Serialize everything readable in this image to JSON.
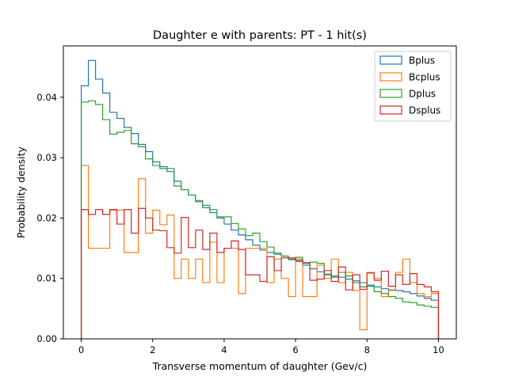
{
  "chart_data": {
    "type": "histogram",
    "title": "Daughter e with parents: PT - 1 hit(s)",
    "xlabel": "Transverse momentum of daughter (Gev/c)",
    "ylabel": "Probability density",
    "xlim": [
      -0.5,
      10.5
    ],
    "ylim": [
      0,
      0.0485
    ],
    "x_ticks": [
      0,
      2,
      4,
      6,
      8,
      10
    ],
    "y_ticks": [
      0.0,
      0.01,
      0.02,
      0.03,
      0.04
    ],
    "y_tick_labels": [
      "0.00",
      "0.01",
      "0.02",
      "0.03",
      "0.04"
    ],
    "bin_start": 0,
    "bin_width": 0.2,
    "legend": "top-right",
    "series": [
      {
        "name": "Bplus",
        "color": "#1f77b4",
        "values": [
          0.0419,
          0.0461,
          0.043,
          0.0407,
          0.0375,
          0.0365,
          0.035,
          0.034,
          0.0322,
          0.031,
          0.0293,
          0.0285,
          0.0277,
          0.0261,
          0.0247,
          0.0238,
          0.0227,
          0.0217,
          0.0209,
          0.02,
          0.019,
          0.018,
          0.0172,
          0.0164,
          0.0155,
          0.0147,
          0.0143,
          0.014,
          0.0137,
          0.0132,
          0.0128,
          0.0122,
          0.0116,
          0.0111,
          0.0107,
          0.0104,
          0.0102,
          0.0099,
          0.0096,
          0.0093,
          0.0089,
          0.0086,
          0.0083,
          0.0081,
          0.008,
          0.0078,
          0.0075,
          0.0071,
          0.0067,
          0.0064
        ]
      },
      {
        "name": "Bcplus",
        "color": "#ff7f0e",
        "values": [
          0.0287,
          0.015,
          0.015,
          0.015,
          0.0213,
          0.0213,
          0.0143,
          0.0143,
          0.0265,
          0.0175,
          0.0213,
          0.0189,
          0.0205,
          0.01,
          0.0132,
          0.01,
          0.0132,
          0.0093,
          0.016,
          0.0093,
          0.015,
          0.015,
          0.0075,
          0.015,
          0.015,
          0.015,
          0.0093,
          0.0132,
          0.01,
          0.007,
          0.0132,
          0.007,
          0.007,
          0.0122,
          0.01,
          0.0132,
          0.0093,
          0.011,
          0.008,
          0.0015,
          0.011,
          0.01,
          0.007,
          0.008,
          0.011,
          0.0132,
          0.0093,
          0.0075,
          0.007,
          0.0075
        ]
      },
      {
        "name": "Dplus",
        "color": "#2ca02c",
        "values": [
          0.0392,
          0.0394,
          0.0388,
          0.0363,
          0.0339,
          0.0342,
          0.0345,
          0.0323,
          0.0318,
          0.0298,
          0.0287,
          0.0282,
          0.0282,
          0.0253,
          0.0247,
          0.0238,
          0.0229,
          0.0221,
          0.0214,
          0.0202,
          0.0202,
          0.0191,
          0.0182,
          0.0171,
          0.0175,
          0.0161,
          0.0152,
          0.0142,
          0.0137,
          0.0131,
          0.0135,
          0.0125,
          0.0127,
          0.0125,
          0.0106,
          0.0102,
          0.011,
          0.0104,
          0.0093,
          0.0086,
          0.0087,
          0.0078,
          0.0075,
          0.007,
          0.0067,
          0.0061,
          0.006,
          0.0056,
          0.0054,
          0.0052
        ]
      },
      {
        "name": "Dsplus",
        "color": "#d62728",
        "values": [
          0.0214,
          0.0206,
          0.0214,
          0.0206,
          0.0214,
          0.019,
          0.0214,
          0.0175,
          0.0216,
          0.02,
          0.018,
          0.0179,
          0.0151,
          0.0142,
          0.0201,
          0.0151,
          0.018,
          0.0148,
          0.0175,
          0.0143,
          0.015,
          0.0162,
          0.0148,
          0.0106,
          0.0106,
          0.0095,
          0.0136,
          0.0113,
          0.0134,
          0.0134,
          0.013,
          0.0126,
          0.0097,
          0.0099,
          0.0113,
          0.0095,
          0.0119,
          0.0081,
          0.0106,
          0.0082,
          0.0109,
          0.0097,
          0.0112,
          0.0087,
          0.0106,
          0.009,
          0.0108,
          0.009,
          0.0086,
          0.0078
        ]
      }
    ]
  }
}
